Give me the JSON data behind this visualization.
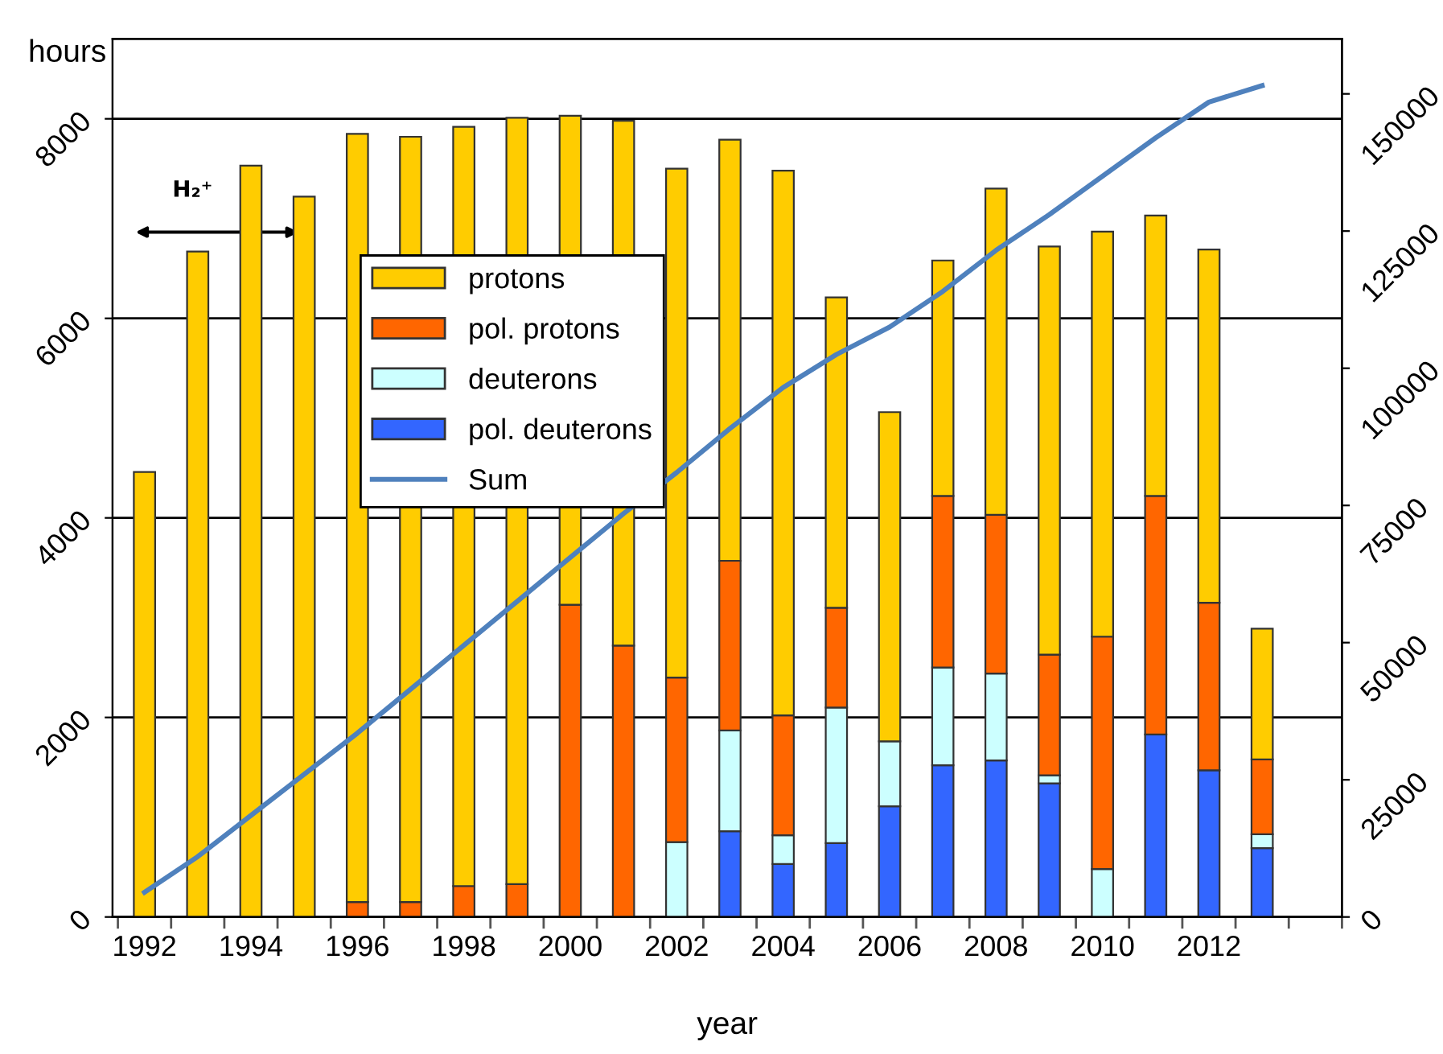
{
  "chart_data": {
    "type": "bar",
    "stacked": true,
    "xlabel": "year",
    "ylabel": "hours",
    "categories": [
      "1992",
      null,
      "1994",
      null,
      "1996",
      null,
      "1998",
      null,
      "2000",
      null,
      "2002",
      null,
      "2004",
      null,
      "2006",
      null,
      "2008",
      null,
      "2010",
      null,
      "2012",
      null,
      null
    ],
    "series": [
      {
        "name": "pol. deuterons",
        "color": "#3366ff",
        "values": [
          null,
          null,
          null,
          null,
          null,
          null,
          null,
          null,
          null,
          null,
          null,
          860,
          530,
          740,
          1110,
          1520,
          1570,
          1340,
          null,
          1830,
          1470,
          690,
          null
        ]
      },
      {
        "name": "deuterons",
        "color": "#ccffff",
        "values": [
          null,
          null,
          null,
          null,
          null,
          null,
          null,
          null,
          null,
          null,
          750,
          1010,
          290,
          1360,
          650,
          980,
          870,
          80,
          480,
          null,
          null,
          140,
          null
        ]
      },
      {
        "name": "pol. protons",
        "color": "#ff6600",
        "values": [
          null,
          null,
          null,
          null,
          150,
          150,
          310,
          330,
          3130,
          2720,
          1650,
          1700,
          1200,
          1000,
          null,
          1720,
          1590,
          1210,
          2330,
          2390,
          1680,
          750,
          null
        ]
      },
      {
        "name": "protons",
        "color": "#ffcc00",
        "values": [
          4460,
          6670,
          7530,
          7220,
          7700,
          7670,
          7610,
          7680,
          4900,
          5260,
          5100,
          4220,
          5460,
          3110,
          3300,
          2360,
          3270,
          4090,
          4060,
          2810,
          3540,
          1310,
          null
        ]
      },
      {
        "name": "Sum",
        "type": "line",
        "axis": "y2",
        "color": "#4f81bd",
        "values": [
          4500,
          11000,
          18500,
          26000,
          33500,
          41500,
          49500,
          57500,
          65500,
          73500,
          81000,
          89000,
          96500,
          102500,
          107500,
          114000,
          121500,
          128000,
          135000,
          142000,
          148500,
          151500,
          null
        ]
      }
    ],
    "ylim": [
      0,
      8800
    ],
    "yticks": [
      0,
      2000,
      4000,
      6000,
      8000
    ],
    "y2lim": [
      0,
      160000
    ],
    "y2ticks": [
      0,
      25000,
      50000,
      75000,
      100000,
      125000,
      150000
    ],
    "grid": "y",
    "legend": "top left",
    "marker": "none",
    "line_style": "solid",
    "annotations": [
      "H₂⁺"
    ]
  }
}
